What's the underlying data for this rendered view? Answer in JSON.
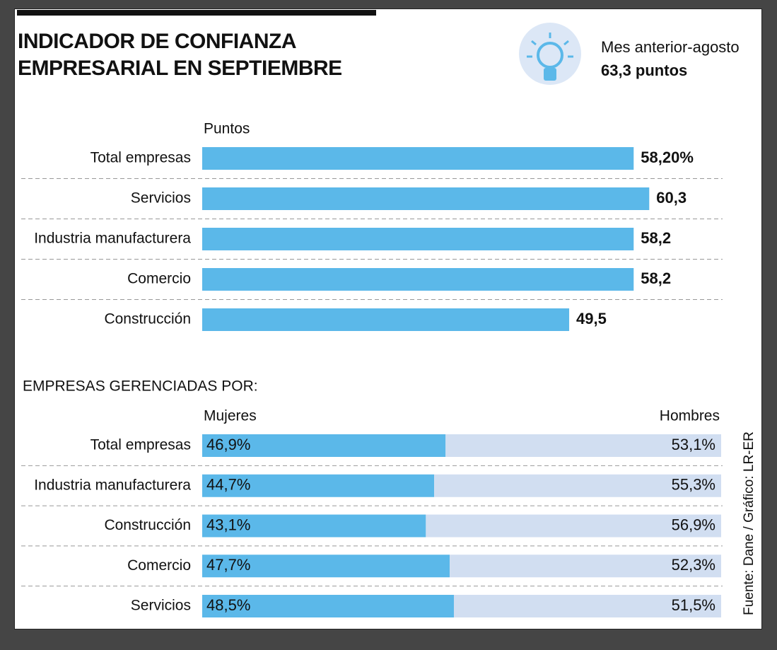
{
  "chart_data": [
    {
      "type": "bar",
      "title": "INDICADOR DE CONFIANZA EMPRESARIAL EN SEPTIEMBRE",
      "annotation": {
        "label": "Mes anterior-agosto",
        "value": "63,3 puntos"
      },
      "x_label": "Puntos",
      "categories": [
        "Total empresas",
        "Servicios",
        "Industria manufacturera",
        "Comercio",
        "Construcción"
      ],
      "values": [
        58.2,
        60.3,
        58.2,
        58.2,
        49.5
      ],
      "value_labels": [
        "58,20%",
        "60,3",
        "58,2",
        "58,2",
        "49,5"
      ],
      "color": "#5bb8e9",
      "xlim": [
        0,
        70
      ]
    },
    {
      "type": "stacked_bar",
      "title": "EMPRESAS GERENCIADAS POR:",
      "categories": [
        "Total empresas",
        "Industria manufacturera",
        "Construcción",
        "Comercio",
        "Servicios"
      ],
      "series": [
        {
          "name": "Mujeres",
          "color": "#5bb8e9",
          "values": [
            46.9,
            44.7,
            43.1,
            47.7,
            48.5
          ],
          "value_labels": [
            "46,9%",
            "44,7%",
            "43,1%",
            "47,7%",
            "48,5%"
          ]
        },
        {
          "name": "Hombres",
          "color": "#d1def1",
          "values": [
            53.1,
            55.3,
            56.9,
            52.3,
            51.5
          ],
          "value_labels": [
            "53,1%",
            "55,3%",
            "56,9%",
            "52,3%",
            "51,5%"
          ]
        }
      ],
      "xlim": [
        0,
        100
      ]
    }
  ],
  "source": "Fuente: Dane / Gráfico: LR-ER"
}
